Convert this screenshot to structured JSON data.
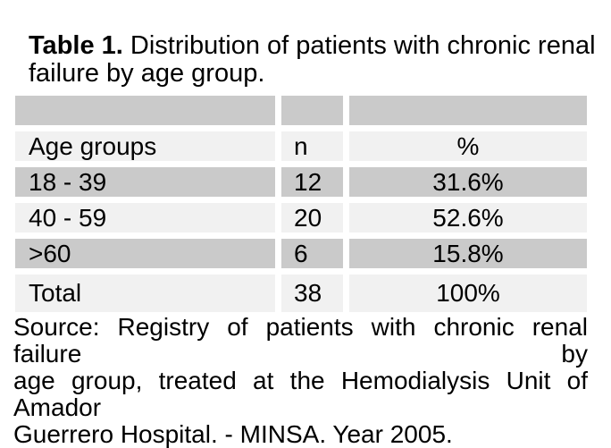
{
  "caption": {
    "bold": "Table 1.",
    "line1_rest": " Distribution of patients with chronic renal",
    "line2": "failure by age group."
  },
  "table": {
    "columns": [
      "Age groups",
      "n",
      "%"
    ],
    "rows": [
      {
        "age_group": "18 - 39",
        "n": "12",
        "percent": "31.6%"
      },
      {
        "age_group": "40 - 59",
        "n": "20",
        "percent": "52.6%"
      },
      {
        "age_group": ">60",
        "n": "6",
        "percent": "15.8%"
      },
      {
        "age_group": "Total",
        "n": "38",
        "percent": "100%"
      }
    ]
  },
  "source": {
    "lines": [
      "Source: Registry of patients with chronic renal failure by",
      "age group, treated at the Hemodialysis Unit of Amador",
      "Guerrero Hospital. - MINSA. Year 2005."
    ]
  },
  "colors": {
    "row-dark": "#cacaca",
    "row-light": "#f1f1f1",
    "text": "#000000",
    "background": "#ffffff"
  }
}
